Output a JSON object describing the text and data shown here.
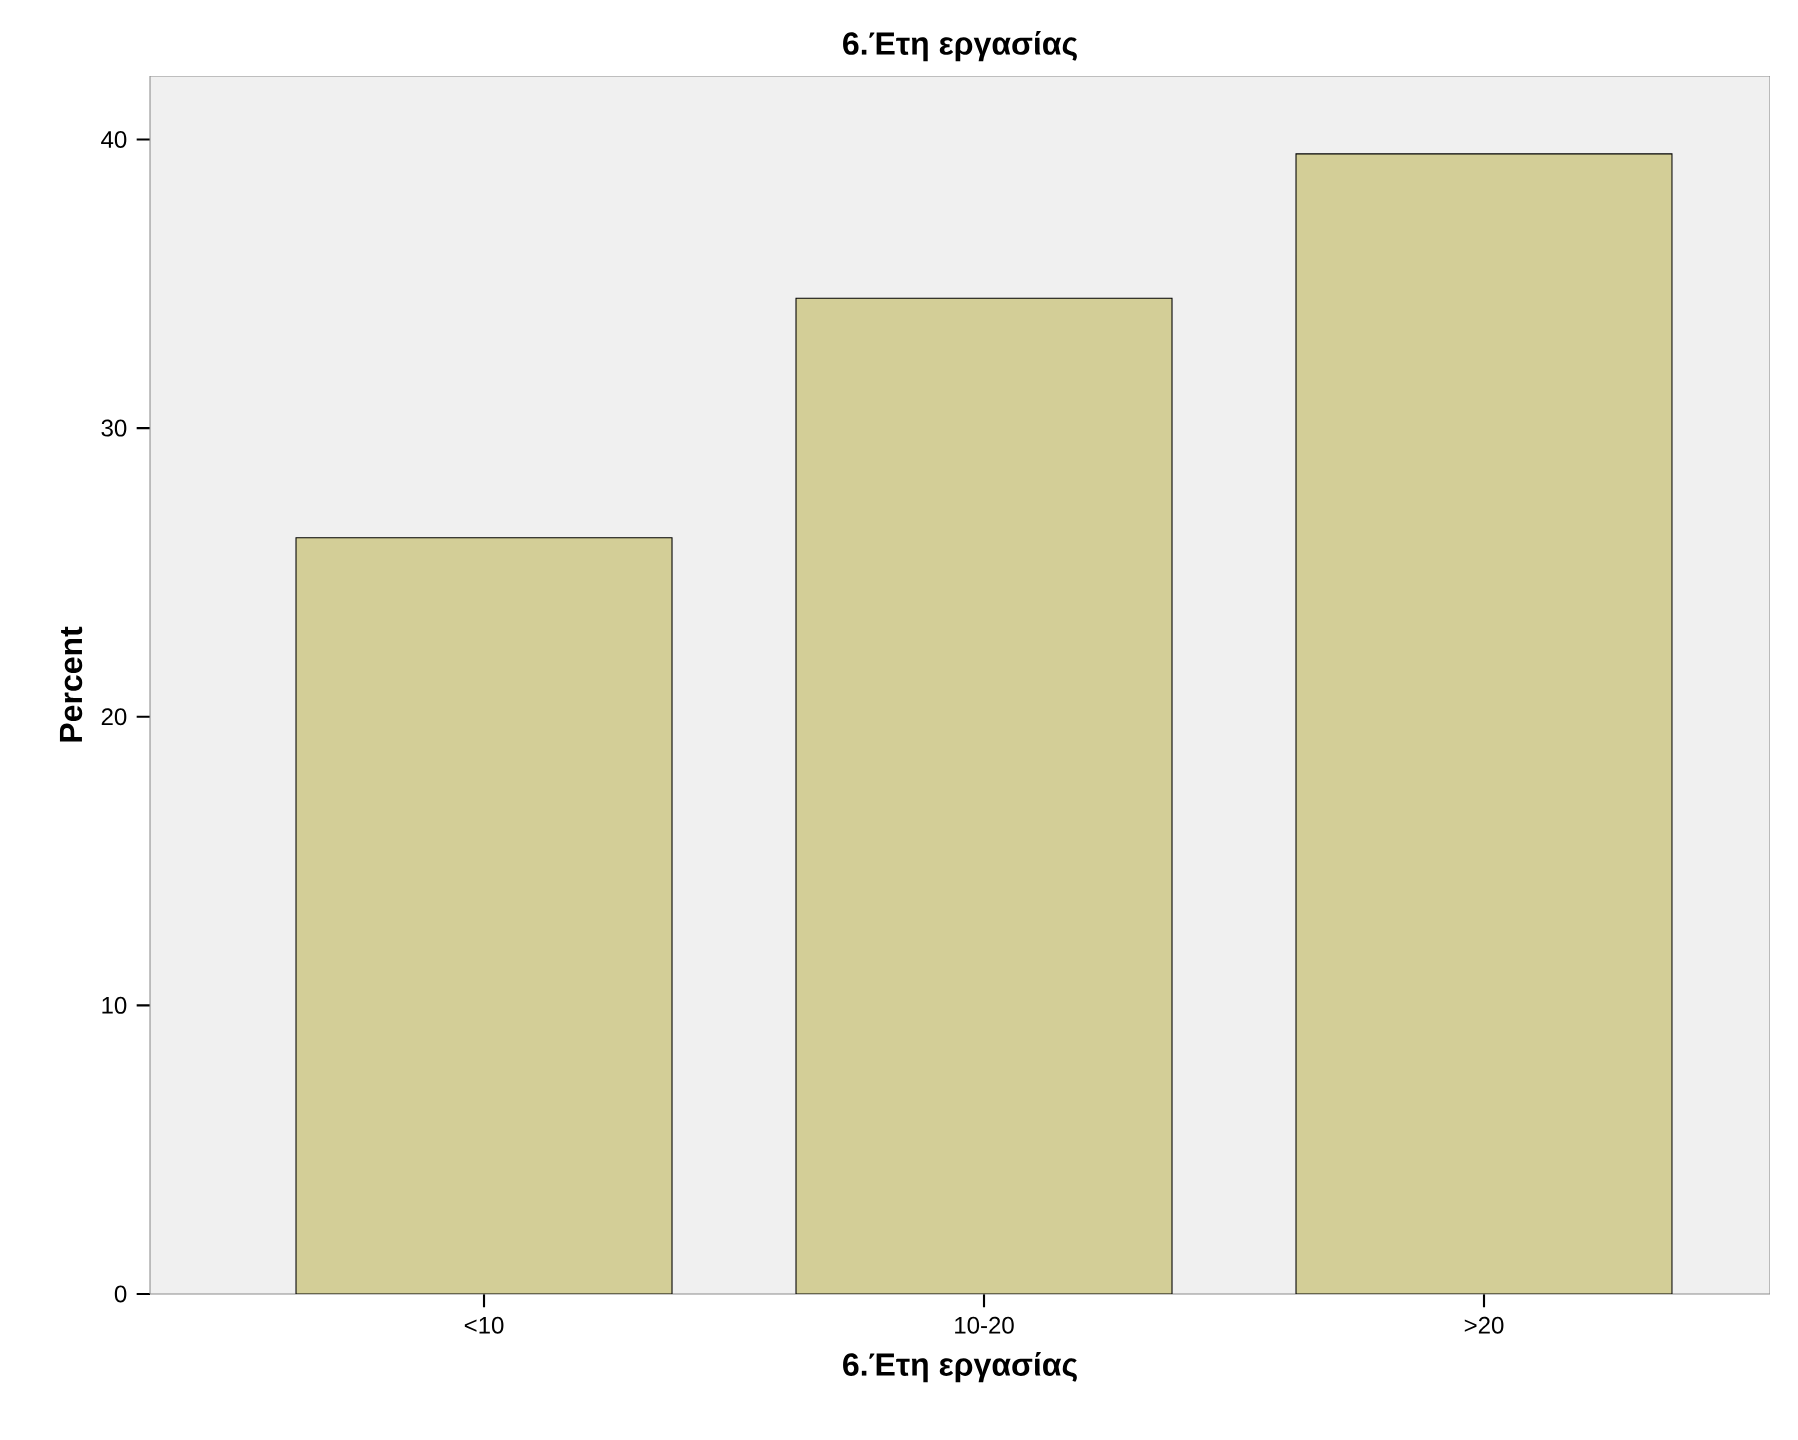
{
  "chart_data": {
    "type": "bar",
    "title": "6.Έτη εργασίας",
    "xlabel": "6.Έτη εργασίας",
    "ylabel": "Percent",
    "categories": [
      "<10",
      "10-20",
      ">20"
    ],
    "values": [
      26.2,
      34.5,
      39.5
    ],
    "color": "#d3ce97",
    "ylim": [
      0,
      42.2
    ],
    "yticks": [
      0,
      10,
      20,
      30,
      40
    ],
    "grid": false
  }
}
